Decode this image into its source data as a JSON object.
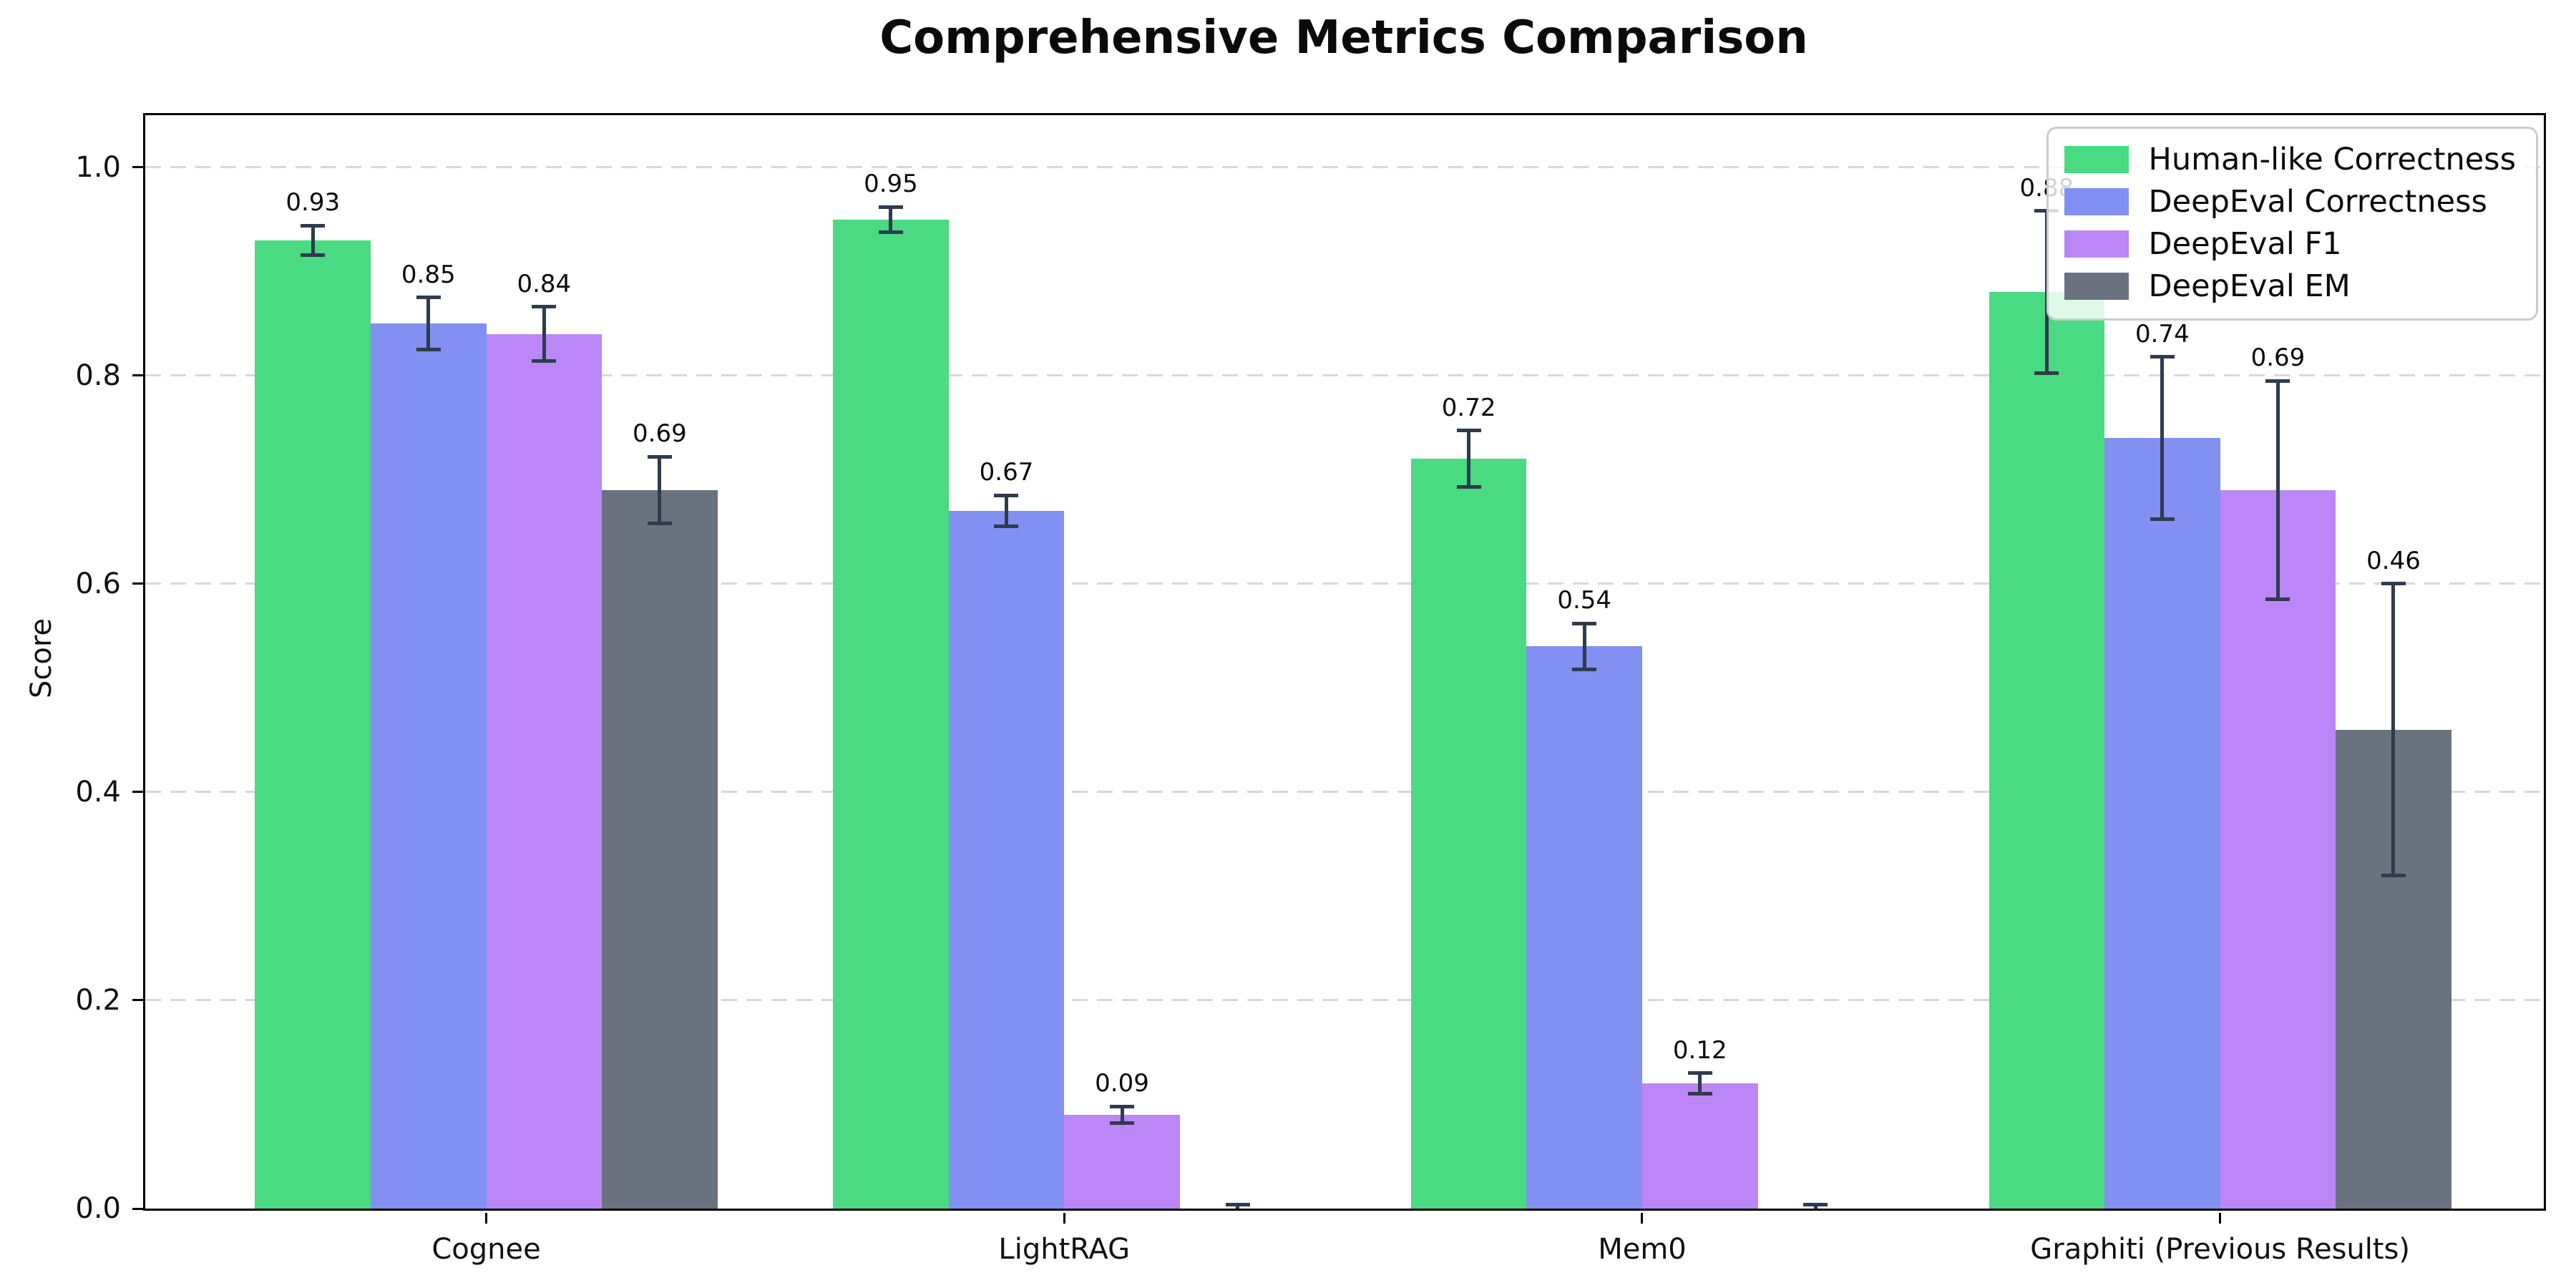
{
  "chart_data": {
    "type": "bar",
    "title": "Comprehensive Metrics Comparison",
    "xlabel": "",
    "ylabel": "Score",
    "categories": [
      "Cognee",
      "LightRAG",
      "Mem0",
      "Graphiti (Previous Results)"
    ],
    "series": [
      {
        "name": "Human-like Correctness",
        "color": "#49da82",
        "values": [
          0.93,
          0.95,
          0.72,
          0.88
        ],
        "errors": [
          0.014,
          0.012,
          0.027,
          0.078
        ],
        "bar_labels": [
          "0.93",
          "0.95",
          "0.72",
          "0.88"
        ]
      },
      {
        "name": "DeepEval Correctness",
        "color": "#8190f1",
        "values": [
          0.85,
          0.67,
          0.54,
          0.74
        ],
        "errors": [
          0.025,
          0.015,
          0.022,
          0.078
        ],
        "bar_labels": [
          "0.85",
          "0.67",
          "0.54",
          "0.74"
        ]
      },
      {
        "name": "DeepEval F1",
        "color": "#bb87f6",
        "values": [
          0.84,
          0.09,
          0.12,
          0.69
        ],
        "errors": [
          0.026,
          0.008,
          0.01,
          0.105
        ],
        "bar_labels": [
          "0.84",
          "0.09",
          "0.12",
          "0.69"
        ]
      },
      {
        "name": "DeepEval EM",
        "color": "#6a7280",
        "values": [
          0.69,
          0.0,
          0.0,
          0.46
        ],
        "errors": [
          0.032,
          0.004,
          0.004,
          0.14
        ],
        "bar_labels": [
          "0.69",
          "",
          "",
          "0.46"
        ]
      }
    ],
    "ytick_labels": [
      "0.0",
      "0.2",
      "0.4",
      "0.6",
      "0.8",
      "1.0"
    ],
    "yticks": [
      0.0,
      0.2,
      0.4,
      0.6,
      0.8,
      1.0
    ],
    "ylim": [
      0,
      1.05
    ],
    "xlim_units": [
      -0.59,
      3.56
    ],
    "bar_width_units": 0.2,
    "grid": "horizontal-dashed",
    "legend_position": "upper right",
    "colors": {
      "errorbar": "#2f3b4e",
      "grid": "#d8d8d8",
      "axis": "#000000",
      "background": "#ffffff"
    }
  }
}
